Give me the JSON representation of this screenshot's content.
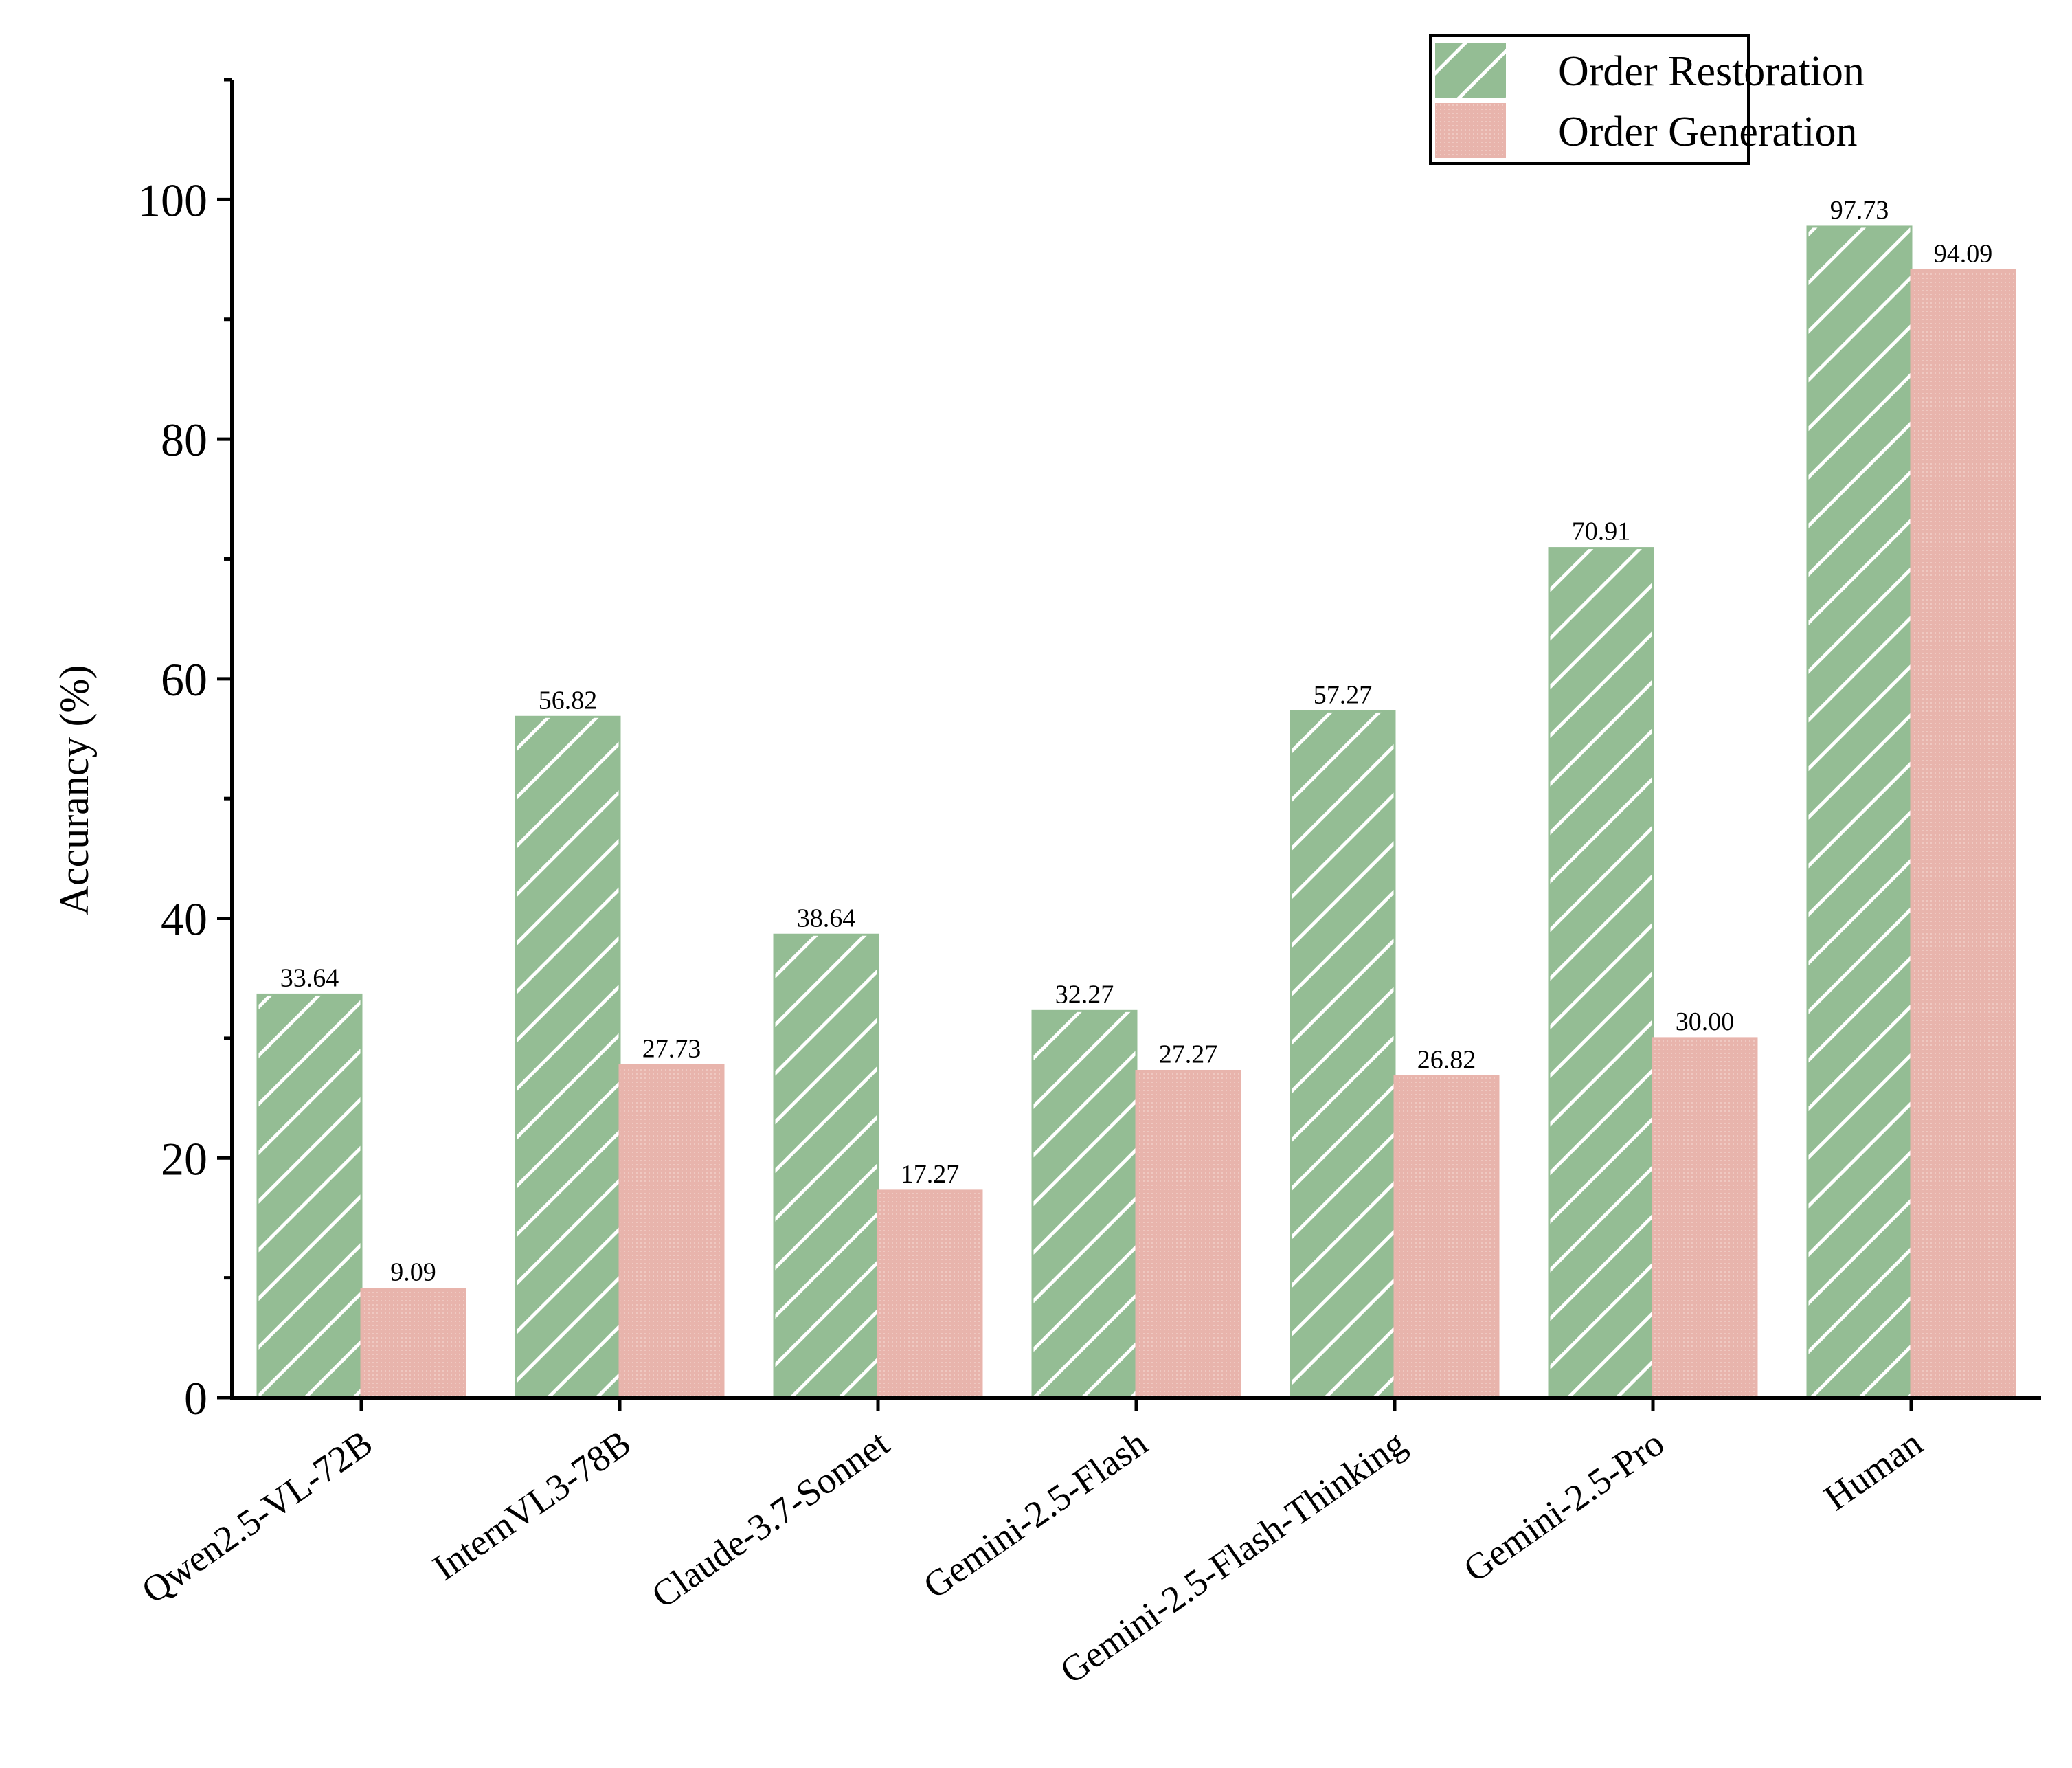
{
  "chart_data": {
    "type": "bar",
    "title": "",
    "xlabel": "",
    "ylabel": "Accurancy (%)",
    "ylim": [
      0,
      110
    ],
    "yticks": [
      0,
      20,
      40,
      60,
      80,
      100
    ],
    "grid": false,
    "legend_position": "top-right",
    "categories": [
      "Qwen2.5-VL-72B",
      "InternVL3-78B",
      "Claude-3.7-Sonnet",
      "Gemini-2.5-Flash",
      "Gemini-2.5-Flash-Thinking",
      "Gemini-2.5-Pro",
      "Human"
    ],
    "series": [
      {
        "name": "Order Restoration",
        "color": "#94bd94",
        "pattern": "diagonal-hatch",
        "values": [
          33.64,
          56.82,
          38.64,
          32.27,
          57.27,
          70.91,
          97.73
        ],
        "labels": [
          "33.64",
          "56.82",
          "38.64",
          "32.27",
          "57.27",
          "70.91",
          "97.73"
        ]
      },
      {
        "name": "Order Generation",
        "color": "#e8b4ac",
        "pattern": "fine-dots",
        "values": [
          9.09,
          27.73,
          17.27,
          27.27,
          26.82,
          30.0,
          94.09
        ],
        "labels": [
          "9.09",
          "27.73",
          "17.27",
          "27.27",
          "26.82",
          "30.00",
          "94.09"
        ]
      }
    ]
  }
}
